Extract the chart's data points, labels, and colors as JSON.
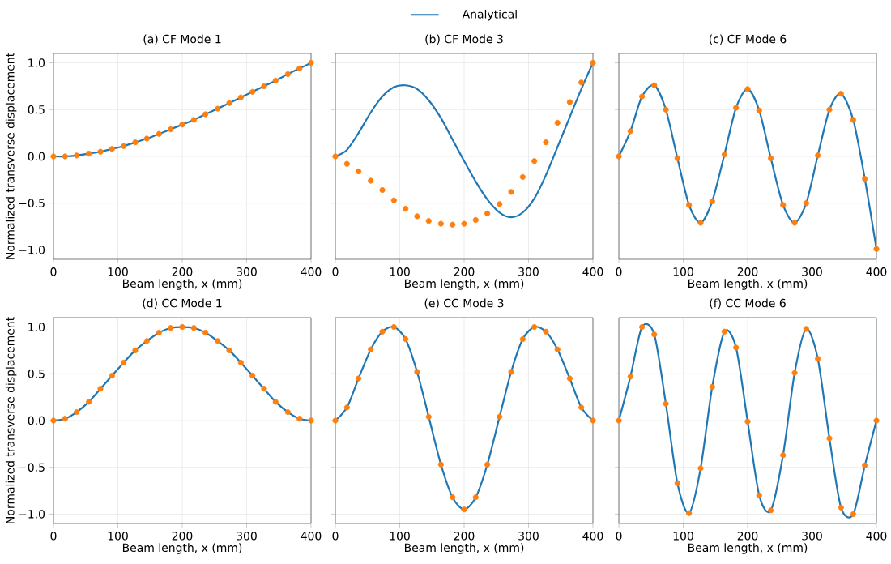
{
  "chart_data": [
    {
      "type": "line",
      "title": "(a) CF Mode 1",
      "xlabel": "Beam length, x (mm)",
      "ylabel": "Normalized transverse displacement",
      "xlim": [
        0,
        400
      ],
      "ylim": [
        -1.1,
        1.1
      ],
      "xticks": [
        0,
        100,
        200,
        300,
        400
      ],
      "yticks": [
        {
          "value": -1,
          "label": "−1.0"
        },
        {
          "value": -0.5,
          "label": "−0.5"
        },
        {
          "value": 0,
          "label": "0.0"
        },
        {
          "value": 0.5,
          "label": "0.5"
        },
        {
          "value": 1,
          "label": "1.0"
        }
      ],
      "grid": true,
      "legend": "top",
      "x": [
        0,
        18,
        36,
        55,
        73,
        91,
        109,
        127,
        145,
        164,
        182,
        200,
        218,
        236,
        255,
        273,
        291,
        309,
        327,
        345,
        364,
        382,
        400
      ],
      "series": [
        {
          "name": "Analytical",
          "color": "#1f77b4",
          "values": [
            0,
            0,
            0.01,
            0.03,
            0.05,
            0.08,
            0.11,
            0.15,
            0.19,
            0.24,
            0.29,
            0.34,
            0.39,
            0.45,
            0.51,
            0.57,
            0.63,
            0.69,
            0.75,
            0.81,
            0.88,
            0.94,
            1.0
          ]
        },
        {
          "type": "scatter",
          "color": "#ff7f0e",
          "values": [
            0,
            0,
            0.01,
            0.03,
            0.05,
            0.08,
            0.11,
            0.15,
            0.19,
            0.24,
            0.29,
            0.34,
            0.39,
            0.45,
            0.51,
            0.57,
            0.63,
            0.69,
            0.75,
            0.81,
            0.88,
            0.94,
            1.0
          ]
        }
      ]
    },
    {
      "type": "line",
      "title": "(b) CF Mode 3",
      "xlabel": "Beam length, x (mm)",
      "xlim": [
        0,
        400
      ],
      "ylim": [
        -1.1,
        1.1
      ],
      "xticks": [
        0,
        100,
        200,
        300,
        400
      ],
      "yticks": [
        {
          "value": -1,
          "label": null
        },
        {
          "value": -0.5,
          "label": null
        },
        {
          "value": 0,
          "label": null
        },
        {
          "value": 0.5,
          "label": null
        },
        {
          "value": 1,
          "label": null
        }
      ],
      "grid": true,
      "tick_labels": "x",
      "x": [
        0,
        18,
        36,
        55,
        73,
        91,
        109,
        127,
        145,
        164,
        182,
        200,
        218,
        236,
        255,
        273,
        291,
        309,
        327,
        345,
        364,
        382,
        400
      ],
      "series": [
        {
          "color": "#1f77b4",
          "values": [
            0,
            0.07,
            0.25,
            0.47,
            0.64,
            0.74,
            0.76,
            0.72,
            0.6,
            0.41,
            0.18,
            -0.05,
            -0.27,
            -0.46,
            -0.6,
            -0.65,
            -0.6,
            -0.45,
            -0.2,
            0.1,
            0.42,
            0.72,
            1.0
          ]
        },
        {
          "type": "scatter",
          "color": "#ff7f0e",
          "values": [
            0,
            -0.08,
            -0.16,
            -0.26,
            -0.36,
            -0.47,
            -0.56,
            -0.64,
            -0.69,
            -0.72,
            -0.73,
            -0.72,
            -0.68,
            -0.61,
            -0.51,
            -0.38,
            -0.22,
            -0.05,
            0.15,
            0.36,
            0.58,
            0.79,
            1.0
          ]
        }
      ]
    },
    {
      "type": "line",
      "title": "(c) CF Mode 6",
      "xlabel": "Beam length, x (mm)",
      "xlim": [
        0,
        400
      ],
      "ylim": [
        -1.1,
        1.1
      ],
      "xticks": [
        0,
        100,
        200,
        300,
        400
      ],
      "yticks": [
        {
          "value": -1,
          "label": null
        },
        {
          "value": -0.5,
          "label": null
        },
        {
          "value": 0,
          "label": null
        },
        {
          "value": 0.5,
          "label": null
        },
        {
          "value": 1,
          "label": null
        }
      ],
      "grid": true,
      "tick_labels": "x",
      "x": [
        0,
        18,
        36,
        55,
        73,
        91,
        109,
        127,
        145,
        164,
        182,
        200,
        218,
        236,
        255,
        273,
        291,
        309,
        327,
        345,
        364,
        382,
        400
      ],
      "series": [
        {
          "color": "#1f77b4",
          "values": [
            0,
            0.27,
            0.64,
            0.76,
            0.5,
            -0.02,
            -0.52,
            -0.71,
            -0.48,
            0.02,
            0.52,
            0.72,
            0.49,
            -0.02,
            -0.52,
            -0.71,
            -0.5,
            0.01,
            0.5,
            0.67,
            0.39,
            -0.24,
            -0.99
          ]
        },
        {
          "type": "scatter",
          "color": "#ff7f0e",
          "values": [
            0,
            0.27,
            0.64,
            0.76,
            0.5,
            -0.02,
            -0.52,
            -0.71,
            -0.48,
            0.02,
            0.52,
            0.72,
            0.49,
            -0.02,
            -0.52,
            -0.71,
            -0.5,
            0.01,
            0.5,
            0.67,
            0.39,
            -0.24,
            -0.99
          ]
        }
      ]
    },
    {
      "type": "line",
      "title": "(d) CC Mode 1",
      "xlabel": "Beam length, x (mm)",
      "ylabel": "Normalized transverse displacement",
      "xlim": [
        0,
        400
      ],
      "ylim": [
        -1.1,
        1.1
      ],
      "xticks": [
        0,
        100,
        200,
        300,
        400
      ],
      "yticks": [
        {
          "value": -1,
          "label": "−1.0"
        },
        {
          "value": -0.5,
          "label": "−0.5"
        },
        {
          "value": 0,
          "label": "0.0"
        },
        {
          "value": 0.5,
          "label": "0.5"
        },
        {
          "value": 1,
          "label": "1.0"
        }
      ],
      "grid": true,
      "x": [
        0,
        18,
        36,
        55,
        73,
        91,
        109,
        127,
        145,
        164,
        182,
        200,
        218,
        236,
        255,
        273,
        291,
        309,
        327,
        345,
        364,
        382,
        400
      ],
      "series": [
        {
          "color": "#1f77b4",
          "values": [
            0,
            0.02,
            0.09,
            0.2,
            0.34,
            0.48,
            0.62,
            0.75,
            0.85,
            0.94,
            0.99,
            1.0,
            0.99,
            0.94,
            0.85,
            0.75,
            0.62,
            0.48,
            0.34,
            0.2,
            0.09,
            0.02,
            0
          ]
        },
        {
          "type": "scatter",
          "color": "#ff7f0e",
          "values": [
            0,
            0.02,
            0.09,
            0.2,
            0.34,
            0.48,
            0.62,
            0.75,
            0.85,
            0.94,
            0.99,
            1.0,
            0.99,
            0.94,
            0.85,
            0.75,
            0.62,
            0.48,
            0.34,
            0.2,
            0.09,
            0.02,
            0
          ]
        }
      ]
    },
    {
      "type": "line",
      "title": "(e) CC Mode 3",
      "xlabel": "Beam length, x (mm)",
      "xlim": [
        0,
        400
      ],
      "ylim": [
        -1.1,
        1.1
      ],
      "xticks": [
        0,
        100,
        200,
        300,
        400
      ],
      "yticks": [
        {
          "value": -1,
          "label": null
        },
        {
          "value": -0.5,
          "label": null
        },
        {
          "value": 0,
          "label": null
        },
        {
          "value": 0.5,
          "label": null
        },
        {
          "value": 1,
          "label": null
        }
      ],
      "grid": true,
      "tick_labels": "x",
      "x": [
        0,
        18,
        36,
        55,
        73,
        91,
        109,
        127,
        145,
        164,
        182,
        200,
        218,
        236,
        255,
        273,
        291,
        309,
        327,
        345,
        364,
        382,
        400
      ],
      "series": [
        {
          "color": "#1f77b4",
          "values": [
            0,
            0.14,
            0.45,
            0.76,
            0.95,
            1.0,
            0.87,
            0.52,
            0.04,
            -0.47,
            -0.82,
            -0.95,
            -0.82,
            -0.47,
            0.04,
            0.52,
            0.87,
            1.0,
            0.95,
            0.76,
            0.45,
            0.14,
            0
          ]
        },
        {
          "type": "scatter",
          "color": "#ff7f0e",
          "values": [
            0,
            0.14,
            0.45,
            0.76,
            0.95,
            1.0,
            0.87,
            0.52,
            0.04,
            -0.47,
            -0.82,
            -0.95,
            -0.82,
            -0.47,
            0.04,
            0.52,
            0.87,
            1.0,
            0.95,
            0.76,
            0.45,
            0.14,
            0
          ]
        }
      ]
    },
    {
      "type": "line",
      "title": "(f) CC Mode 6",
      "xlabel": "Beam length, x (mm)",
      "xlim": [
        0,
        400
      ],
      "ylim": [
        -1.1,
        1.1
      ],
      "xticks": [
        0,
        100,
        200,
        300,
        400
      ],
      "yticks": [
        {
          "value": -1,
          "label": null
        },
        {
          "value": -0.5,
          "label": null
        },
        {
          "value": 0,
          "label": null
        },
        {
          "value": 0.5,
          "label": null
        },
        {
          "value": 1,
          "label": null
        }
      ],
      "grid": true,
      "tick_labels": "x",
      "x": [
        0,
        18,
        36,
        55,
        73,
        91,
        109,
        127,
        145,
        164,
        182,
        200,
        218,
        236,
        255,
        273,
        291,
        309,
        327,
        345,
        364,
        382,
        400
      ],
      "series": [
        {
          "color": "#1f77b4",
          "values": [
            0,
            0.47,
            1.0,
            0.92,
            0.18,
            -0.67,
            -0.99,
            -0.51,
            0.36,
            0.95,
            0.78,
            -0.01,
            -0.8,
            -0.96,
            -0.37,
            0.51,
            0.98,
            0.66,
            -0.19,
            -0.93,
            -1.0,
            -0.48,
            0
          ]
        },
        {
          "type": "scatter",
          "color": "#ff7f0e",
          "values": [
            0,
            0.47,
            1.0,
            0.92,
            0.18,
            -0.67,
            -0.99,
            -0.51,
            0.36,
            0.95,
            0.78,
            -0.01,
            -0.8,
            -0.96,
            -0.37,
            0.51,
            0.98,
            0.66,
            -0.19,
            -0.93,
            -1.0,
            -0.48,
            0
          ]
        }
      ]
    }
  ]
}
